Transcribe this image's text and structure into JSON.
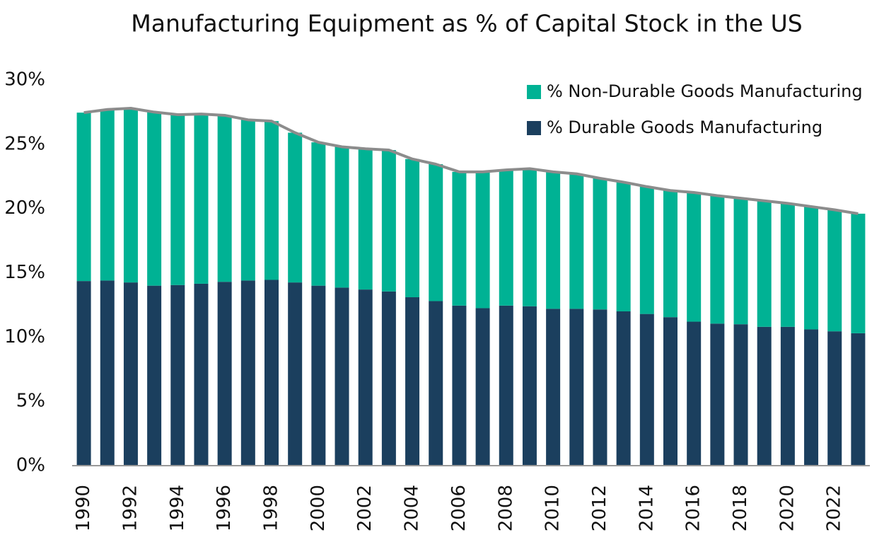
{
  "chart_data": {
    "type": "stacked_bar",
    "title": "Manufacturing Equipment as % of Capital Stock in the US",
    "categories": [
      "1990",
      null,
      "1992",
      null,
      "1994",
      null,
      "1996",
      null,
      "1998",
      null,
      "2000",
      null,
      "2002",
      null,
      "2004",
      null,
      "2006",
      null,
      "2008",
      null,
      "2010",
      null,
      "2012",
      null,
      "2014",
      null,
      "2016",
      null,
      "2018",
      null,
      "2020",
      null,
      "2022",
      null
    ],
    "series": [
      {
        "name": "% Durable Goods Manufacturing",
        "color": "#1b3f5e",
        "values": [
          14.36,
          14.4,
          14.25,
          14.0,
          14.05,
          14.15,
          14.3,
          14.4,
          14.45,
          14.25,
          14.0,
          13.85,
          13.7,
          13.55,
          13.1,
          12.8,
          12.45,
          12.25,
          12.45,
          12.4,
          12.2,
          12.2,
          12.15,
          12.0,
          11.8,
          11.55,
          11.2,
          11.05,
          11.0,
          10.8,
          10.8,
          10.6,
          10.45,
          10.3
        ]
      },
      {
        "name": "% Non-Durable Goods Manufacturing",
        "color": "#00b294",
        "values": [
          13.1,
          13.3,
          13.55,
          13.5,
          13.25,
          13.2,
          12.95,
          12.5,
          12.35,
          11.65,
          11.15,
          10.95,
          10.95,
          11.0,
          10.75,
          10.65,
          10.4,
          10.6,
          10.55,
          10.7,
          10.65,
          10.5,
          10.2,
          10.05,
          9.9,
          9.85,
          10.05,
          9.95,
          9.8,
          9.8,
          9.6,
          9.55,
          9.45,
          9.3
        ]
      }
    ],
    "total_line_color": "#8c8c8c",
    "ylim": [
      0,
      30
    ],
    "yticks": [
      {
        "value": 0,
        "label": "0%"
      },
      {
        "value": 5,
        "label": "5%"
      },
      {
        "value": 10,
        "label": "10%"
      },
      {
        "value": 15,
        "label": "15%"
      },
      {
        "value": 20,
        "label": "20%"
      },
      {
        "value": 25,
        "label": "25%"
      },
      {
        "value": 30,
        "label": "30%"
      }
    ],
    "grid": false,
    "legend": "top-right"
  }
}
